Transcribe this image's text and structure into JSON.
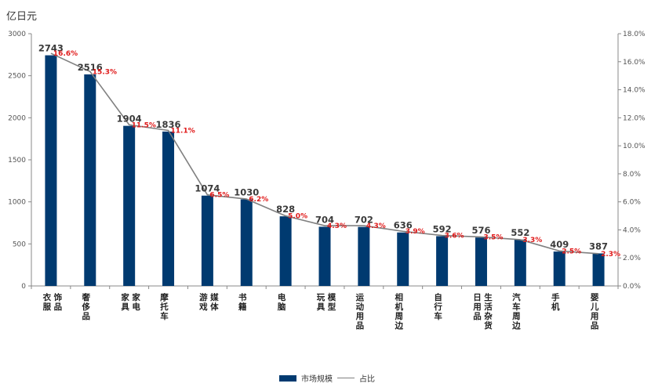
{
  "chart_data": {
    "type": "bar",
    "unit_label": "亿日元",
    "categories": [
      "衣服・饰品",
      "奢侈品",
      "家具・家电",
      "摩托车",
      "游戏・媒体",
      "书籍",
      "电脑",
      "玩具・模型",
      "运动用品",
      "相机周边",
      "自行车",
      "日用品・生活杂货",
      "汽车周边",
      "手机",
      "婴儿用品"
    ],
    "series": [
      {
        "name": "市场规模",
        "type": "bar",
        "axis": "left",
        "color": "#003a70",
        "values": [
          2743,
          2516,
          1904,
          1836,
          1074,
          1030,
          828,
          704,
          702,
          636,
          592,
          576,
          552,
          409,
          387
        ]
      },
      {
        "name": "占比",
        "type": "line",
        "axis": "right",
        "color": "#808080",
        "values": [
          16.6,
          15.3,
          11.5,
          11.1,
          6.5,
          6.2,
          5.0,
          4.3,
          4.3,
          3.9,
          3.6,
          3.5,
          3.3,
          2.5,
          2.3
        ],
        "labels": [
          "16.6%",
          "15.3%",
          "11.5%",
          "11.1%",
          "6.5%",
          "6.2%",
          "5.0%",
          "4.3%",
          "4.3%",
          "3.9%",
          "3.6%",
          "3.5%",
          "3.3%",
          "2.5%",
          "2.3%"
        ]
      }
    ],
    "ylim_left": [
      0,
      3000
    ],
    "left_ticks": [
      "0",
      "500",
      "1000",
      "1500",
      "2000",
      "2500",
      "3000"
    ],
    "ylim_right": [
      0,
      18
    ],
    "right_ticks": [
      "0.0%",
      "2.0%",
      "4.0%",
      "6.0%",
      "8.0%",
      "10.0%",
      "12.0%",
      "14.0%",
      "16.0%",
      "18.0%"
    ],
    "grid": false,
    "legend_position": "bottom-center",
    "colors": {
      "bar": "#003a70",
      "line": "#808080",
      "pct_label": "#e01b1b"
    }
  }
}
